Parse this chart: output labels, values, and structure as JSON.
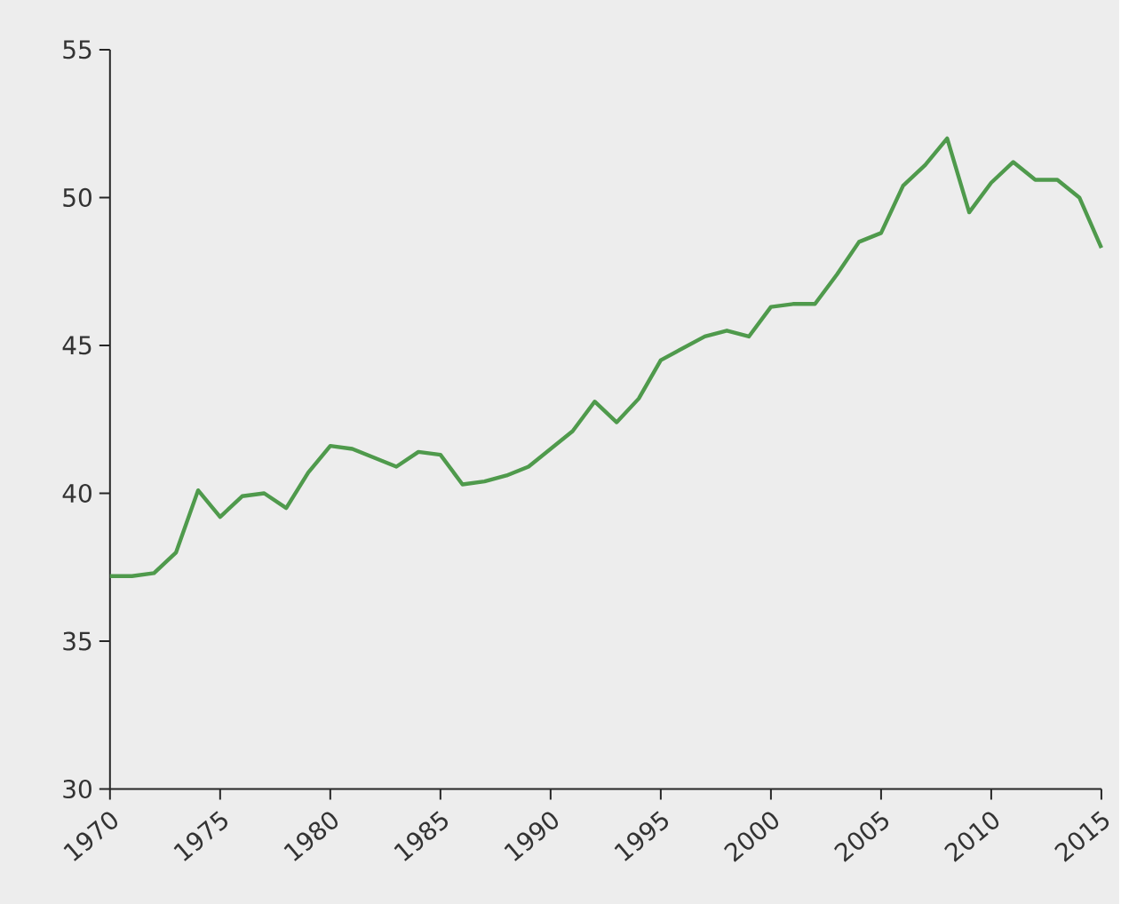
{
  "chart_data": {
    "type": "line",
    "x": [
      1970,
      1971,
      1972,
      1973,
      1974,
      1975,
      1976,
      1977,
      1978,
      1979,
      1980,
      1981,
      1982,
      1983,
      1984,
      1985,
      1986,
      1987,
      1988,
      1989,
      1990,
      1991,
      1992,
      1993,
      1994,
      1995,
      1996,
      1997,
      1998,
      1999,
      2000,
      2001,
      2002,
      2003,
      2004,
      2005,
      2006,
      2007,
      2008,
      2009,
      2010,
      2011,
      2012,
      2013,
      2014,
      2015
    ],
    "series": [
      {
        "color": "#4f9a4c",
        "values": [
          37.2,
          37.2,
          37.3,
          38.0,
          40.1,
          39.2,
          39.9,
          40.0,
          39.5,
          40.7,
          41.6,
          41.5,
          41.2,
          40.9,
          41.4,
          41.3,
          40.3,
          40.4,
          40.6,
          40.9,
          41.5,
          42.1,
          43.1,
          42.4,
          43.2,
          44.5,
          44.9,
          45.3,
          45.5,
          45.3,
          46.3,
          46.4,
          46.4,
          47.4,
          48.5,
          48.8,
          50.4,
          51.1,
          52.0,
          49.5,
          50.5,
          51.2,
          50.6,
          50.6,
          50.0,
          48.3
        ]
      }
    ],
    "xlim": [
      1970,
      2015
    ],
    "xticks": [
      1970,
      1975,
      1980,
      1985,
      1990,
      1995,
      2000,
      2005,
      2010,
      2015
    ],
    "ylim": [
      30,
      55
    ],
    "yticks": [
      30,
      35,
      40,
      45,
      50,
      55
    ],
    "grid": false
  }
}
